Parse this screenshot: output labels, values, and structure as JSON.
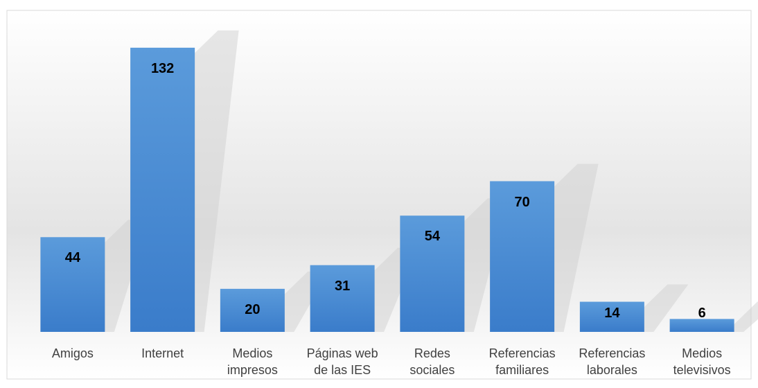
{
  "chart_data": {
    "type": "bar",
    "categories": [
      "Amigos",
      "Internet",
      "Medios impresos",
      "Páginas web de las IES",
      "Redes sociales",
      "Referencias familiares",
      "Referencias laborales",
      "Medios televisivos"
    ],
    "values": [
      44,
      132,
      20,
      31,
      54,
      70,
      14,
      6
    ],
    "color": "#4a8fd6",
    "ylim": [
      0,
      140
    ]
  }
}
